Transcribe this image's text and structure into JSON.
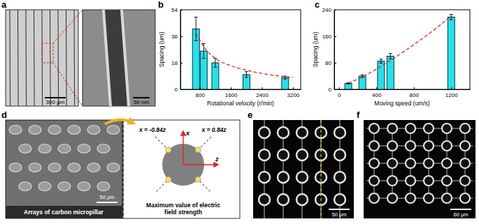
{
  "chart_data": [
    {
      "type": "bar",
      "x": [
        700,
        900,
        1200,
        2000,
        3000
      ],
      "values": [
        41,
        26,
        18,
        10,
        8
      ],
      "errors": [
        8,
        5,
        3,
        2,
        1
      ],
      "color": "#1fe3ee",
      "xlim": [
        300,
        3400
      ],
      "xticks": [
        800,
        1600,
        2400,
        3200
      ],
      "ylim": [
        0,
        54
      ],
      "yticks": [
        0,
        18,
        36,
        54
      ],
      "x_label": "Rotational velocity (r/min)",
      "y_label": "Spacing (um)",
      "fit": {
        "type": "line",
        "x": [
          700,
          900,
          1200,
          1600,
          2000,
          2400,
          2800,
          3200
        ],
        "values": [
          38,
          29,
          21,
          16,
          13,
          10.8,
          9.2,
          8
        ],
        "color": "#e8231f",
        "line_style": "dashed"
      }
    },
    {
      "type": "bar",
      "x": [
        100,
        250,
        450,
        550,
        1200
      ],
      "values": [
        18,
        40,
        85,
        100,
        218
      ],
      "errors": [
        2,
        4,
        6,
        8,
        8
      ],
      "color": "#1fe3ee",
      "xlim": [
        -50,
        1400
      ],
      "xticks": [
        0,
        400,
        800,
        1200
      ],
      "ylim": [
        0,
        240
      ],
      "yticks": [
        0,
        80,
        160,
        240
      ],
      "x_label": "Moving speed (um/s)",
      "y_label": "Spacing (um)",
      "fit": {
        "type": "line",
        "x": [
          100,
          300,
          500,
          700,
          900,
          1100,
          1200
        ],
        "values": [
          18,
          45,
          78,
          115,
          155,
          198,
          222
        ],
        "color": "#e8231f",
        "line_style": "dashed"
      }
    }
  ],
  "figure": {
    "labels": [
      "a",
      "b",
      "c",
      "d",
      "e",
      "f"
    ],
    "a": {
      "scale_bar": "300 μm",
      "inset_scale_bar": "50 nm"
    },
    "d": {
      "scale_bar": "50 μm",
      "caption": "Arrays of carbon micropillar",
      "axis_x": "x",
      "axis_z": "z",
      "line_left": "x = -0.84z",
      "line_right": "x = 0.84z",
      "description": [
        "Maximum value of electric",
        "field strength"
      ]
    },
    "e": {
      "scale_bar": "50 μm"
    },
    "f": {
      "scale_bar": "60 μm"
    }
  }
}
